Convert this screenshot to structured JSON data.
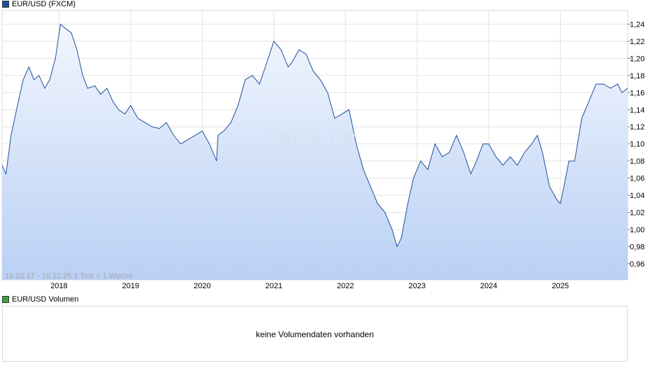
{
  "legend": {
    "price_label": "EUR/USD (FXCM)",
    "price_color": "#1f4e9c",
    "volume_label": "EUR/USD Volumen",
    "volume_color": "#3aa635"
  },
  "info_text": "16.03.17 - 10.12.25    1 Tick = 1 Woche",
  "watermark": "ARIVA.DE",
  "volume_panel": {
    "message": "keine Volumendaten vorhanden"
  },
  "chart_data": {
    "type": "area",
    "title": "",
    "xlabel": "",
    "ylabel": "",
    "x_ticks": [
      "2018",
      "2019",
      "2020",
      "2021",
      "2022",
      "2023",
      "2024",
      "2025"
    ],
    "x_tick_values": [
      2018,
      2019,
      2020,
      2021,
      2022,
      2023,
      2024,
      2025
    ],
    "y_ticks": [
      "0,96",
      "0,98",
      "1,00",
      "1,02",
      "1,04",
      "1,06",
      "1,08",
      "1,10",
      "1,12",
      "1,14",
      "1,16",
      "1,18",
      "1,20",
      "1,22",
      "1,24"
    ],
    "y_tick_values": [
      0.96,
      0.98,
      1.0,
      1.02,
      1.04,
      1.06,
      1.08,
      1.1,
      1.12,
      1.14,
      1.16,
      1.18,
      1.2,
      1.22,
      1.24
    ],
    "xlim": [
      2017.205,
      2025.94
    ],
    "ylim": [
      0.941,
      1.256
    ],
    "grid": true,
    "line_color": "#1f4e9c",
    "fill_top_color": "#f2f6fd",
    "fill_bottom_color": "#b9d0f5",
    "series": [
      {
        "x": [
          2017.205,
          2017.26,
          2017.33,
          2017.42,
          2017.5,
          2017.58,
          2017.65,
          2017.72,
          2017.8,
          2017.87,
          2017.95,
          2018.02,
          2018.09,
          2018.17,
          2018.25,
          2018.33,
          2018.4,
          2018.5,
          2018.58,
          2018.67,
          2018.75,
          2018.83,
          2018.92,
          2019.0,
          2019.1,
          2019.2,
          2019.3,
          2019.4,
          2019.5,
          2019.6,
          2019.7,
          2019.8,
          2019.9,
          2020.0,
          2020.1,
          2020.2,
          2020.22,
          2020.3,
          2020.4,
          2020.5,
          2020.6,
          2020.7,
          2020.8,
          2020.9,
          2021.0,
          2021.1,
          2021.2,
          2021.25,
          2021.35,
          2021.45,
          2021.55,
          2021.65,
          2021.75,
          2021.85,
          2021.95,
          2022.05,
          2022.15,
          2022.25,
          2022.35,
          2022.45,
          2022.55,
          2022.65,
          2022.72,
          2022.78,
          2022.87,
          2022.95,
          2023.05,
          2023.15,
          2023.25,
          2023.35,
          2023.45,
          2023.55,
          2023.65,
          2023.75,
          2023.83,
          2023.92,
          2024.0,
          2024.1,
          2024.2,
          2024.3,
          2024.4,
          2024.5,
          2024.6,
          2024.68,
          2024.75,
          2024.85,
          2024.95,
          2025.0,
          2025.05,
          2025.12,
          2025.2,
          2025.3,
          2025.4,
          2025.5,
          2025.6,
          2025.7,
          2025.8,
          2025.86,
          2025.94
        ],
        "y": [
          1.075,
          1.065,
          1.11,
          1.145,
          1.175,
          1.19,
          1.175,
          1.18,
          1.165,
          1.175,
          1.2,
          1.24,
          1.235,
          1.23,
          1.21,
          1.18,
          1.165,
          1.168,
          1.158,
          1.165,
          1.15,
          1.14,
          1.135,
          1.145,
          1.13,
          1.125,
          1.12,
          1.118,
          1.125,
          1.11,
          1.1,
          1.105,
          1.11,
          1.115,
          1.1,
          1.08,
          1.11,
          1.115,
          1.125,
          1.145,
          1.175,
          1.18,
          1.17,
          1.195,
          1.22,
          1.21,
          1.19,
          1.195,
          1.21,
          1.205,
          1.185,
          1.175,
          1.16,
          1.13,
          1.135,
          1.14,
          1.1,
          1.07,
          1.05,
          1.03,
          1.02,
          1.0,
          0.98,
          0.99,
          1.03,
          1.06,
          1.08,
          1.07,
          1.1,
          1.085,
          1.09,
          1.11,
          1.09,
          1.065,
          1.08,
          1.1,
          1.1,
          1.085,
          1.075,
          1.085,
          1.075,
          1.09,
          1.1,
          1.11,
          1.09,
          1.05,
          1.035,
          1.03,
          1.05,
          1.08,
          1.08,
          1.13,
          1.15,
          1.17,
          1.17,
          1.165,
          1.17,
          1.16,
          1.165
        ]
      }
    ]
  }
}
